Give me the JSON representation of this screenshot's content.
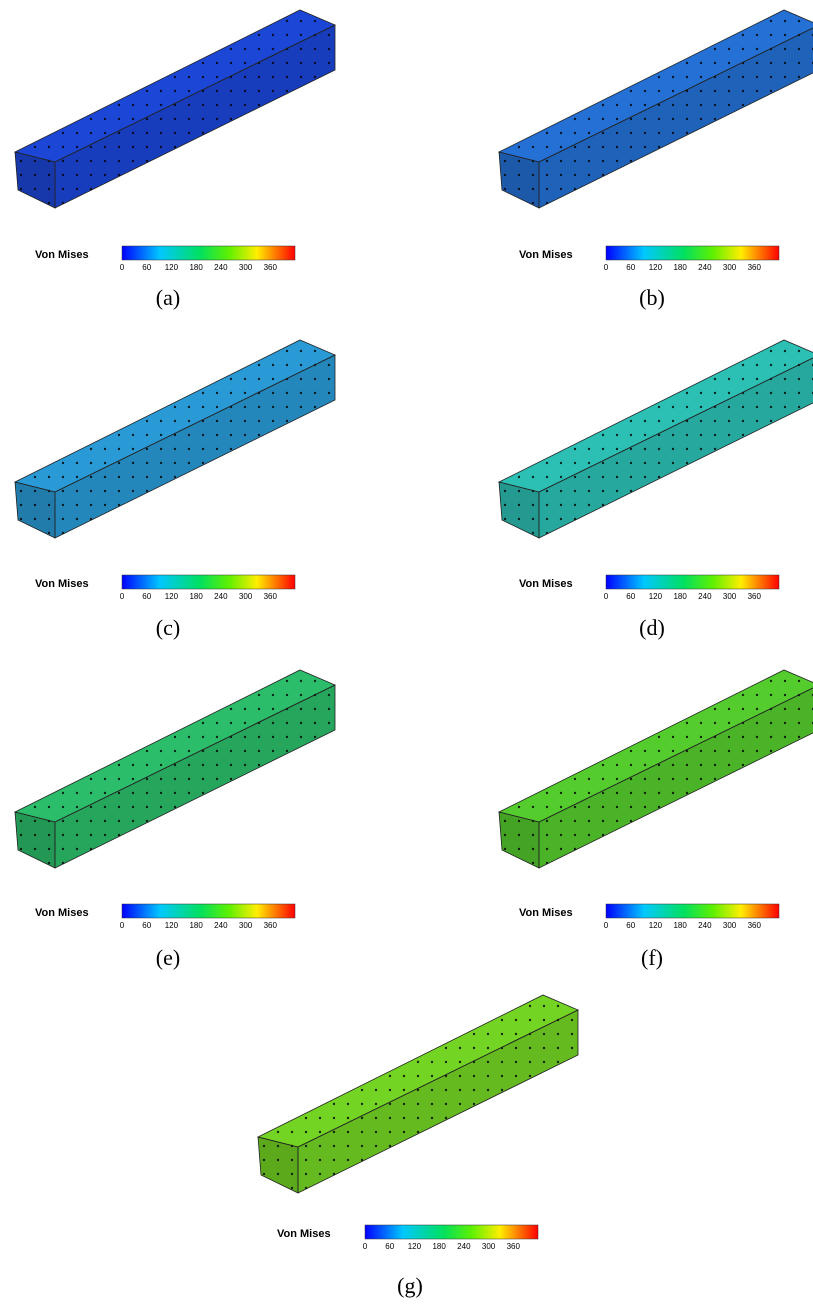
{
  "panels": [
    {
      "label": "(a)",
      "color": "#1c46d6",
      "colorbar": {
        "title": "Von Mises",
        "lim": [
          0,
          420
        ],
        "ticks": [
          0,
          60,
          120,
          180,
          240,
          300,
          360
        ]
      }
    },
    {
      "label": "(b)",
      "color": "#2470d4",
      "colorbar": {
        "title": "Von Mises",
        "lim": [
          0,
          420
        ],
        "ticks": [
          0,
          60,
          120,
          180,
          240,
          300,
          360
        ]
      }
    },
    {
      "label": "(c)",
      "color": "#2a9ad6",
      "colorbar": {
        "title": "Von Mises",
        "lim": [
          0,
          420
        ],
        "ticks": [
          0,
          60,
          120,
          180,
          240,
          300,
          360
        ]
      }
    },
    {
      "label": "(d)",
      "color": "#2cc0b4",
      "colorbar": {
        "title": "Von Mises",
        "lim": [
          0,
          420
        ],
        "ticks": [
          0,
          60,
          120,
          180,
          240,
          300,
          360
        ]
      }
    },
    {
      "label": "(e)",
      "color": "#2cbd6a",
      "colorbar": {
        "title": "Von Mises",
        "lim": [
          0,
          420
        ],
        "ticks": [
          0,
          60,
          120,
          180,
          240,
          300,
          360
        ]
      }
    },
    {
      "label": "(f)",
      "color": "#55cc2e",
      "colorbar": {
        "title": "Von Mises",
        "lim": [
          0,
          420
        ],
        "ticks": [
          0,
          60,
          120,
          180,
          240,
          300,
          360
        ]
      }
    },
    {
      "label": "(g)",
      "color": "#74d424",
      "colorbar": {
        "title": "Von Mises",
        "lim": [
          0,
          420
        ],
        "ticks": [
          0,
          60,
          120,
          180,
          240,
          300,
          360
        ]
      }
    }
  ]
}
